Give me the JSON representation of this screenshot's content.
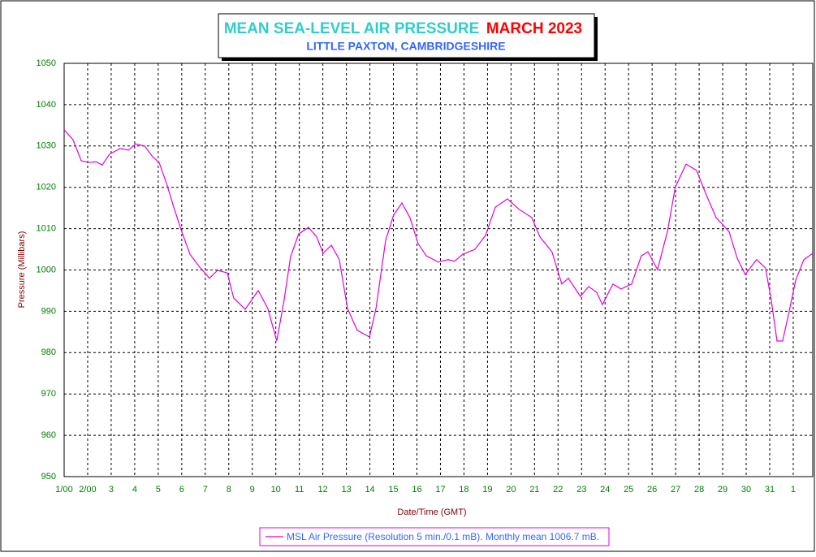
{
  "chart_data": {
    "type": "line",
    "title": "MEAN SEA-LEVEL AIR PRESSURE",
    "title_date": "MARCH 2023",
    "subtitle": "LITTLE PAXTON, CAMBRIDGESHIRE",
    "x_label": "Date/Time (GMT)",
    "y_label": "Pressure (Millibars)",
    "grid": true,
    "legend": "bottom",
    "xlim": [
      1,
      32.83
    ],
    "ylim": [
      950,
      1050
    ],
    "xticks": [
      {
        "value": 1,
        "label": "1/00"
      },
      {
        "value": 2,
        "label": "2/00"
      },
      3,
      4,
      5,
      6,
      7,
      8,
      9,
      10,
      11,
      12,
      13,
      14,
      15,
      16,
      17,
      18,
      19,
      20,
      21,
      22,
      23,
      24,
      25,
      26,
      27,
      28,
      29,
      30,
      31,
      {
        "value": 32,
        "label": "1"
      }
    ],
    "yticks": [
      950,
      960,
      970,
      980,
      990,
      1000,
      1010,
      1020,
      1030,
      1040,
      1050
    ],
    "x": [
      1.0,
      1.38,
      1.73,
      2.07,
      2.35,
      2.62,
      2.93,
      3.38,
      3.73,
      4.04,
      4.42,
      4.76,
      5.04,
      5.35,
      5.66,
      6.0,
      6.35,
      6.73,
      7.18,
      7.52,
      7.94,
      8.21,
      8.7,
      9.25,
      9.66,
      10.04,
      10.35,
      10.63,
      10.97,
      11.39,
      11.74,
      12.01,
      12.36,
      12.7,
      13.05,
      13.46,
      13.98,
      14.26,
      14.67,
      15.01,
      15.36,
      15.7,
      16.05,
      16.4,
      16.91,
      17.33,
      17.6,
      17.95,
      18.47,
      18.92,
      19.33,
      19.85,
      20.36,
      20.88,
      21.23,
      21.74,
      22.16,
      22.44,
      22.95,
      23.3,
      23.64,
      23.89,
      24.33,
      24.68,
      25.13,
      25.54,
      25.82,
      26.23,
      26.65,
      26.99,
      27.44,
      27.89,
      28.3,
      28.72,
      29.27,
      29.62,
      29.96,
      30.44,
      30.82,
      31.07,
      31.31,
      31.55,
      31.82,
      32.1,
      32.45,
      32.83
    ],
    "series": [
      {
        "name": "MSL Air Pressure (Resolution 5 min./0.1 mB). Monthly mean 1006.7 mB.",
        "color": "#e000e0",
        "values": [
          1033.9,
          1031.5,
          1026.4,
          1026.0,
          1026.2,
          1025.4,
          1028.0,
          1029.4,
          1029.0,
          1030.5,
          1030.0,
          1027.4,
          1026.0,
          1021.0,
          1015.2,
          1009.3,
          1003.8,
          1000.9,
          998.0,
          999.9,
          999.3,
          993.2,
          990.5,
          995.0,
          990.7,
          982.8,
          992.6,
          1003.2,
          1008.7,
          1010.3,
          1008.0,
          1004.0,
          1006.0,
          1002.5,
          990.7,
          985.4,
          983.8,
          990.7,
          1007.2,
          1013.3,
          1016.2,
          1012.7,
          1006.4,
          1003.4,
          1001.9,
          1002.5,
          1002.1,
          1003.8,
          1005.0,
          1008.4,
          1015.2,
          1017.2,
          1014.6,
          1012.7,
          1008.0,
          1004.4,
          996.6,
          998.0,
          993.6,
          996.0,
          994.6,
          991.6,
          996.6,
          995.4,
          996.6,
          1003.4,
          1004.4,
          1000.1,
          1009.3,
          1020.1,
          1025.6,
          1024.1,
          1018.2,
          1012.7,
          1009.3,
          1002.8,
          998.9,
          1002.5,
          1000.5,
          992.6,
          982.8,
          982.8,
          989.7,
          997.5,
          1002.5,
          1004.0
        ]
      }
    ]
  }
}
